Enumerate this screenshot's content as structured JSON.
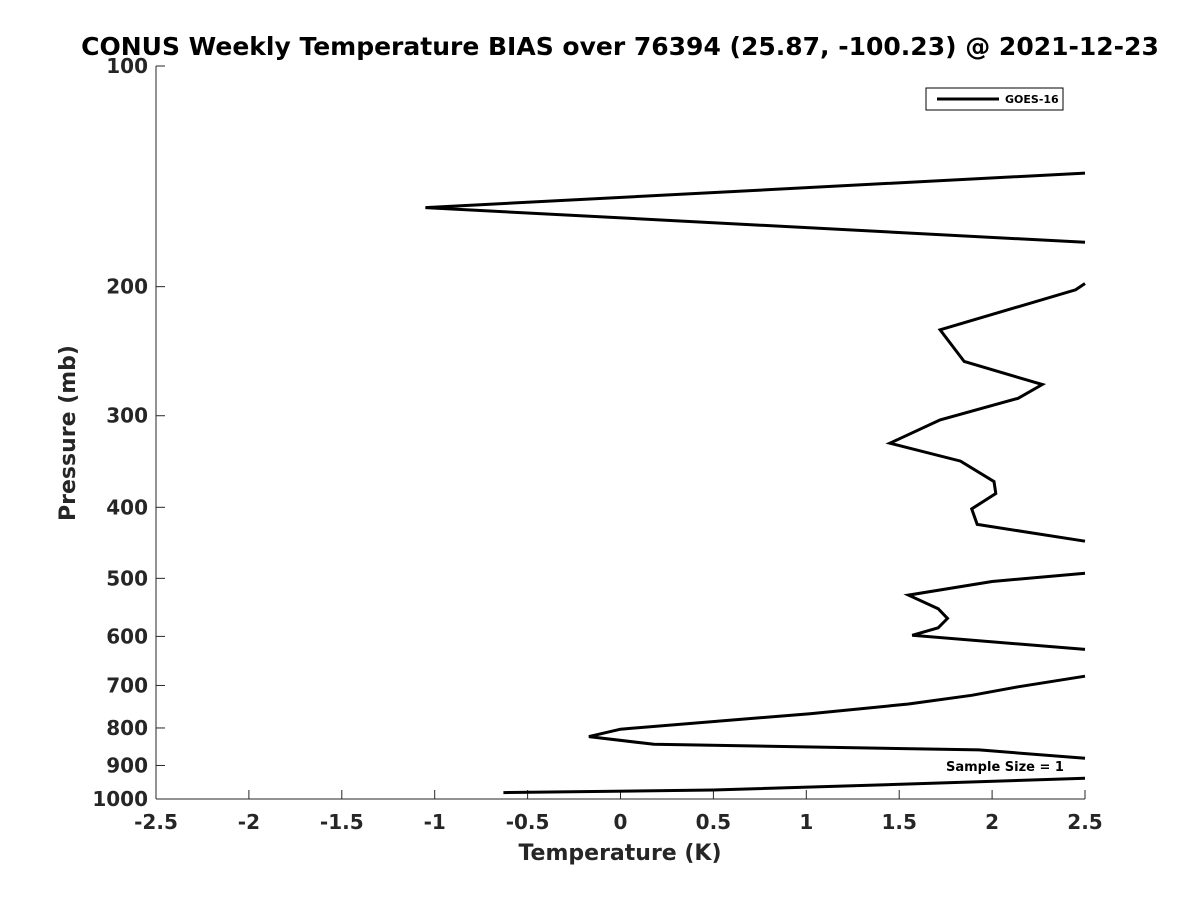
{
  "chart_data": {
    "type": "line",
    "title": "CONUS Weekly Temperature BIAS over 76394 (25.87, -100.23) @ 2021-12-23",
    "xlabel": "Temperature (K)",
    "ylabel": "Pressure (mb)",
    "xlim": [
      -2.5,
      2.5
    ],
    "ylim": [
      100,
      1000
    ],
    "yscale": "log",
    "yreversed": true,
    "grid": false,
    "legend_position": "top-right",
    "x_ticks": [
      "-2.5",
      "-2",
      "-1.5",
      "-1",
      "-0.5",
      "0",
      "0.5",
      "1",
      "1.5",
      "2",
      "2.5"
    ],
    "y_ticks": [
      "100",
      "200",
      "300",
      "400",
      "500",
      "600",
      "700",
      "800",
      "900",
      "1000"
    ],
    "annotation": "Sample Size = 1",
    "series": [
      {
        "name": "GOES-16",
        "color": "#000000",
        "segments": [
          [
            {
              "x": 2.5,
              "y": 140
            },
            {
              "x": -1.05,
              "y": 156
            },
            {
              "x": 2.5,
              "y": 174
            }
          ],
          [
            {
              "x": 2.5,
              "y": 198
            },
            {
              "x": 2.45,
              "y": 202
            },
            {
              "x": 1.72,
              "y": 229
            },
            {
              "x": 1.85,
              "y": 253
            },
            {
              "x": 2.27,
              "y": 272
            },
            {
              "x": 2.14,
              "y": 284
            },
            {
              "x": 1.72,
              "y": 304
            },
            {
              "x": 1.45,
              "y": 327
            },
            {
              "x": 1.83,
              "y": 346
            },
            {
              "x": 2.01,
              "y": 369
            },
            {
              "x": 2.02,
              "y": 383
            },
            {
              "x": 1.89,
              "y": 402
            },
            {
              "x": 1.92,
              "y": 422
            },
            {
              "x": 2.5,
              "y": 445
            }
          ],
          [
            {
              "x": 2.5,
              "y": 492
            },
            {
              "x": 2.0,
              "y": 505
            },
            {
              "x": 1.55,
              "y": 527
            },
            {
              "x": 1.71,
              "y": 550
            },
            {
              "x": 1.76,
              "y": 567
            },
            {
              "x": 1.71,
              "y": 584
            },
            {
              "x": 1.57,
              "y": 598
            },
            {
              "x": 2.5,
              "y": 625
            }
          ],
          [
            {
              "x": 2.5,
              "y": 680
            },
            {
              "x": 2.14,
              "y": 703
            },
            {
              "x": 1.89,
              "y": 722
            },
            {
              "x": 1.55,
              "y": 742
            },
            {
              "x": 1.02,
              "y": 765
            },
            {
              "x": 0.0,
              "y": 803
            },
            {
              "x": -0.17,
              "y": 822
            },
            {
              "x": 0.18,
              "y": 842
            },
            {
              "x": 1.93,
              "y": 857
            },
            {
              "x": 2.5,
              "y": 880
            }
          ],
          [
            {
              "x": 2.5,
              "y": 937
            },
            {
              "x": 1.55,
              "y": 954
            },
            {
              "x": 0.5,
              "y": 972
            },
            {
              "x": -0.63,
              "y": 980
            }
          ]
        ]
      }
    ]
  }
}
